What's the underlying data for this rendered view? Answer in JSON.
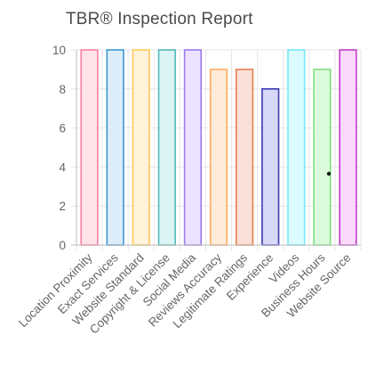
{
  "chart_data": {
    "type": "bar",
    "title": "TBR® Inspection Report",
    "categories": [
      "Location Proximity",
      "Exact Services",
      "Website Standard",
      "Copyright & License",
      "Social Media",
      "Reviews Accuracy",
      "Legitimate Ratings",
      "Experience",
      "Videos",
      "Business Hours",
      "Website Source"
    ],
    "values": [
      10,
      10,
      10,
      10,
      10,
      9,
      9,
      8,
      10,
      9,
      10
    ],
    "ylim": [
      0,
      10
    ],
    "yticks": [
      0,
      2,
      4,
      6,
      8,
      10
    ],
    "grid": true,
    "legend": "none",
    "bar_colors": {
      "fill": [
        "#ffe3ea",
        "#dcecf8",
        "#fff3d9",
        "#ddf4f4",
        "#ebe3ff",
        "#ffebd9",
        "#fae0d9",
        "#d8d8f8",
        "#dcfbff",
        "#dcfbdc",
        "#fad9fb"
      ],
      "border": [
        "#ff7f9f",
        "#3d98d4",
        "#ffcc5a",
        "#4fb9b9",
        "#9c7ae8",
        "#ffab5c",
        "#e68050",
        "#3b3bb4",
        "#74e8f5",
        "#7ee07e",
        "#c23ccb"
      ]
    }
  }
}
